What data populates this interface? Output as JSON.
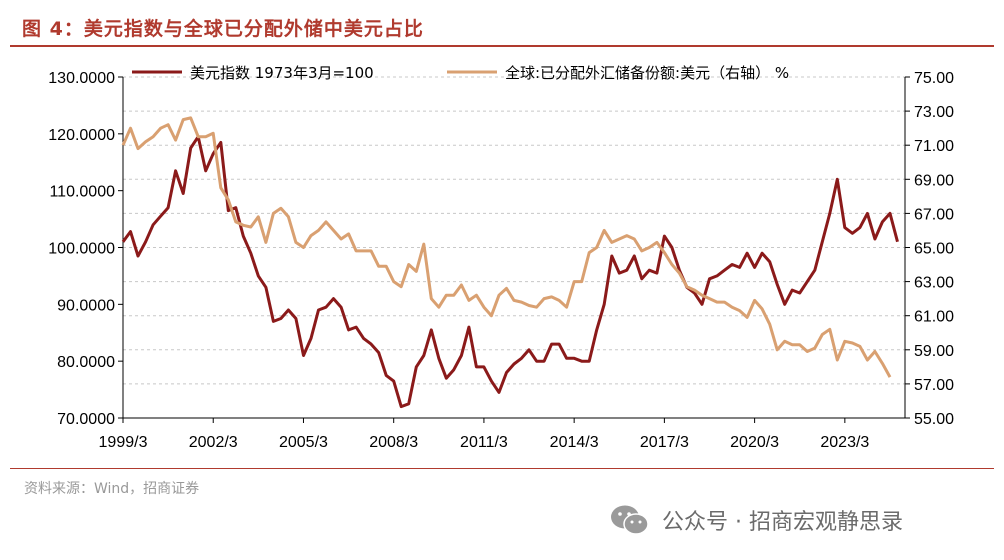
{
  "header": {
    "title": "图 4：美元指数与全球已分配外储中美元占比"
  },
  "footer": {
    "source": "资料来源：Wind，招商证券"
  },
  "watermark": {
    "text": "公众号 · 招商宏观静思录",
    "icon": "wechat-icon"
  },
  "chart_data": {
    "type": "line",
    "title": "",
    "x_tick_labels": [
      "1999/3",
      "2002/3",
      "2005/3",
      "2008/3",
      "2011/3",
      "2014/3",
      "2017/3",
      "2020/3",
      "2023/3"
    ],
    "x_range": [
      1999.0,
      2025.0
    ],
    "y_left": {
      "range": [
        70,
        130
      ],
      "ticks": [
        70,
        80,
        90,
        100,
        110,
        120,
        130
      ],
      "tick_labels": [
        "70.0000",
        "80.0000",
        "90.0000",
        "100.0000",
        "110.0000",
        "120.0000",
        "130.0000"
      ]
    },
    "y_right": {
      "range": [
        55,
        75
      ],
      "ticks": [
        55,
        57,
        59,
        61,
        63,
        65,
        67,
        69,
        71,
        73,
        75
      ],
      "tick_labels": [
        "55.00",
        "57.00",
        "59.00",
        "61.00",
        "63.00",
        "65.00",
        "67.00",
        "69.00",
        "71.00",
        "73.00",
        "75.00"
      ]
    },
    "grid": "horizontal-dashed",
    "legend": "top",
    "series": [
      {
        "name": "美元指数 1973年3月=100",
        "axis": "left",
        "color": "#8b1a1a",
        "points": [
          [
            1999.0,
            101.0
          ],
          [
            1999.25,
            102.8
          ],
          [
            1999.5,
            98.5
          ],
          [
            1999.75,
            101.0
          ],
          [
            2000.0,
            104.0
          ],
          [
            2000.25,
            105.5
          ],
          [
            2000.5,
            107.0
          ],
          [
            2000.75,
            113.5
          ],
          [
            2001.0,
            109.5
          ],
          [
            2001.25,
            117.5
          ],
          [
            2001.5,
            119.5
          ],
          [
            2001.75,
            113.5
          ],
          [
            2002.0,
            116.5
          ],
          [
            2002.25,
            118.5
          ],
          [
            2002.5,
            106.5
          ],
          [
            2002.75,
            107.0
          ],
          [
            2003.0,
            102.0
          ],
          [
            2003.25,
            99.0
          ],
          [
            2003.5,
            95.0
          ],
          [
            2003.75,
            93.0
          ],
          [
            2004.0,
            87.0
          ],
          [
            2004.25,
            87.5
          ],
          [
            2004.5,
            89.0
          ],
          [
            2004.75,
            87.5
          ],
          [
            2005.0,
            81.0
          ],
          [
            2005.25,
            84.0
          ],
          [
            2005.5,
            89.0
          ],
          [
            2005.75,
            89.5
          ],
          [
            2006.0,
            91.0
          ],
          [
            2006.25,
            89.5
          ],
          [
            2006.5,
            85.5
          ],
          [
            2006.75,
            86.0
          ],
          [
            2007.0,
            84.0
          ],
          [
            2007.25,
            83.0
          ],
          [
            2007.5,
            81.5
          ],
          [
            2007.75,
            77.5
          ],
          [
            2008.0,
            76.5
          ],
          [
            2008.25,
            72.0
          ],
          [
            2008.5,
            72.5
          ],
          [
            2008.75,
            79.0
          ],
          [
            2009.0,
            81.0
          ],
          [
            2009.25,
            85.5
          ],
          [
            2009.5,
            80.5
          ],
          [
            2009.75,
            77.0
          ],
          [
            2010.0,
            78.5
          ],
          [
            2010.25,
            81.0
          ],
          [
            2010.5,
            86.0
          ],
          [
            2010.75,
            79.0
          ],
          [
            2011.0,
            79.0
          ],
          [
            2011.25,
            76.5
          ],
          [
            2011.5,
            74.5
          ],
          [
            2011.75,
            78.0
          ],
          [
            2012.0,
            79.5
          ],
          [
            2012.25,
            80.5
          ],
          [
            2012.5,
            82.0
          ],
          [
            2012.75,
            80.0
          ],
          [
            2013.0,
            80.0
          ],
          [
            2013.25,
            83.0
          ],
          [
            2013.5,
            83.0
          ],
          [
            2013.75,
            80.5
          ],
          [
            2014.0,
            80.5
          ],
          [
            2014.25,
            80.0
          ],
          [
            2014.5,
            80.0
          ],
          [
            2014.75,
            85.5
          ],
          [
            2015.0,
            90.0
          ],
          [
            2015.25,
            98.5
          ],
          [
            2015.5,
            95.5
          ],
          [
            2015.75,
            96.0
          ],
          [
            2016.0,
            98.5
          ],
          [
            2016.25,
            94.5
          ],
          [
            2016.5,
            96.0
          ],
          [
            2016.75,
            95.5
          ],
          [
            2017.0,
            102.0
          ],
          [
            2017.25,
            100.0
          ],
          [
            2017.5,
            96.0
          ],
          [
            2017.75,
            93.0
          ],
          [
            2018.0,
            92.0
          ],
          [
            2018.25,
            90.0
          ],
          [
            2018.5,
            94.5
          ],
          [
            2018.75,
            95.0
          ],
          [
            2019.0,
            96.0
          ],
          [
            2019.25,
            97.0
          ],
          [
            2019.5,
            96.5
          ],
          [
            2019.75,
            99.0
          ],
          [
            2020.0,
            96.5
          ],
          [
            2020.25,
            99.0
          ],
          [
            2020.5,
            97.5
          ],
          [
            2020.75,
            93.5
          ],
          [
            2021.0,
            90.0
          ],
          [
            2021.25,
            92.5
          ],
          [
            2021.5,
            92.0
          ],
          [
            2021.75,
            94.0
          ],
          [
            2022.0,
            96.0
          ],
          [
            2022.25,
            101.0
          ],
          [
            2022.5,
            106.0
          ],
          [
            2022.75,
            112.0
          ],
          [
            2023.0,
            103.5
          ],
          [
            2023.25,
            102.5
          ],
          [
            2023.5,
            103.5
          ],
          [
            2023.75,
            106.0
          ],
          [
            2024.0,
            101.5
          ],
          [
            2024.25,
            104.5
          ],
          [
            2024.5,
            106.0
          ],
          [
            2024.75,
            101.0
          ]
        ]
      },
      {
        "name": "全球:已分配外汇储备份额:美元（右轴） %",
        "axis": "right",
        "color": "#d9a071",
        "points": [
          [
            1999.0,
            71.0
          ],
          [
            1999.25,
            72.0
          ],
          [
            1999.5,
            70.8
          ],
          [
            1999.75,
            71.2
          ],
          [
            2000.0,
            71.5
          ],
          [
            2000.25,
            72.0
          ],
          [
            2000.5,
            72.2
          ],
          [
            2000.75,
            71.3
          ],
          [
            2001.0,
            72.5
          ],
          [
            2001.25,
            72.6
          ],
          [
            2001.5,
            71.5
          ],
          [
            2001.75,
            71.5
          ],
          [
            2002.0,
            71.7
          ],
          [
            2002.25,
            68.5
          ],
          [
            2002.5,
            67.8
          ],
          [
            2002.75,
            66.5
          ],
          [
            2003.0,
            66.3
          ],
          [
            2003.25,
            66.2
          ],
          [
            2003.5,
            66.8
          ],
          [
            2003.75,
            65.3
          ],
          [
            2004.0,
            67.0
          ],
          [
            2004.25,
            67.3
          ],
          [
            2004.5,
            66.8
          ],
          [
            2004.75,
            65.3
          ],
          [
            2005.0,
            65.0
          ],
          [
            2005.25,
            65.7
          ],
          [
            2005.5,
            66.0
          ],
          [
            2005.75,
            66.5
          ],
          [
            2006.0,
            66.0
          ],
          [
            2006.25,
            65.5
          ],
          [
            2006.5,
            65.8
          ],
          [
            2006.75,
            64.8
          ],
          [
            2007.0,
            64.8
          ],
          [
            2007.25,
            64.8
          ],
          [
            2007.5,
            63.9
          ],
          [
            2007.75,
            63.9
          ],
          [
            2008.0,
            63.0
          ],
          [
            2008.25,
            62.7
          ],
          [
            2008.5,
            64.0
          ],
          [
            2008.75,
            63.6
          ],
          [
            2009.0,
            65.2
          ],
          [
            2009.25,
            62.0
          ],
          [
            2009.5,
            61.5
          ],
          [
            2009.75,
            62.2
          ],
          [
            2010.0,
            62.2
          ],
          [
            2010.25,
            62.8
          ],
          [
            2010.5,
            61.9
          ],
          [
            2010.75,
            62.2
          ],
          [
            2011.0,
            61.5
          ],
          [
            2011.25,
            61.0
          ],
          [
            2011.5,
            62.2
          ],
          [
            2011.75,
            62.6
          ],
          [
            2012.0,
            61.9
          ],
          [
            2012.25,
            61.8
          ],
          [
            2012.5,
            61.6
          ],
          [
            2012.75,
            61.5
          ],
          [
            2013.0,
            62.0
          ],
          [
            2013.25,
            62.1
          ],
          [
            2013.5,
            61.9
          ],
          [
            2013.75,
            61.5
          ],
          [
            2014.0,
            63.0
          ],
          [
            2014.25,
            63.0
          ],
          [
            2014.5,
            64.7
          ],
          [
            2014.75,
            65.0
          ],
          [
            2015.0,
            66.0
          ],
          [
            2015.25,
            65.3
          ],
          [
            2015.5,
            65.5
          ],
          [
            2015.75,
            65.7
          ],
          [
            2016.0,
            65.5
          ],
          [
            2016.25,
            64.8
          ],
          [
            2016.5,
            65.0
          ],
          [
            2016.75,
            65.3
          ],
          [
            2017.0,
            64.7
          ],
          [
            2017.25,
            64.0
          ],
          [
            2017.5,
            63.5
          ],
          [
            2017.75,
            62.7
          ],
          [
            2018.0,
            62.5
          ],
          [
            2018.25,
            62.2
          ],
          [
            2018.5,
            62.0
          ],
          [
            2018.75,
            61.8
          ],
          [
            2019.0,
            61.8
          ],
          [
            2019.25,
            61.5
          ],
          [
            2019.5,
            61.3
          ],
          [
            2019.75,
            60.9
          ],
          [
            2020.0,
            61.9
          ],
          [
            2020.25,
            61.4
          ],
          [
            2020.5,
            60.5
          ],
          [
            2020.75,
            59.0
          ],
          [
            2021.0,
            59.5
          ],
          [
            2021.25,
            59.3
          ],
          [
            2021.5,
            59.3
          ],
          [
            2021.75,
            58.9
          ],
          [
            2022.0,
            59.1
          ],
          [
            2022.25,
            59.9
          ],
          [
            2022.5,
            60.2
          ],
          [
            2022.75,
            58.4
          ],
          [
            2023.0,
            59.5
          ],
          [
            2023.25,
            59.4
          ],
          [
            2023.5,
            59.2
          ],
          [
            2023.75,
            58.4
          ],
          [
            2024.0,
            58.9
          ],
          [
            2024.25,
            58.2
          ],
          [
            2024.5,
            57.4
          ]
        ]
      }
    ]
  }
}
